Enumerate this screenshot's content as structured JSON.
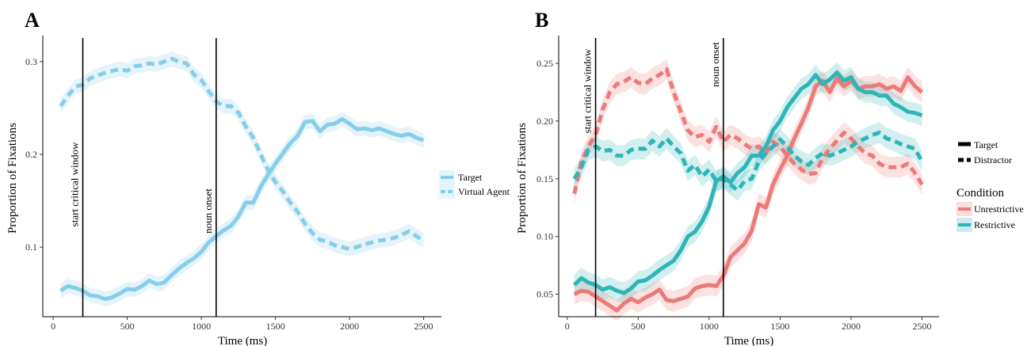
{
  "chart_data": [
    {
      "panel": "A",
      "type": "line",
      "xlabel": "Time (ms)",
      "ylabel": "Proportion of Fixations",
      "xlim": [
        -70,
        2620
      ],
      "ylim": [
        0.025,
        0.328
      ],
      "x_ticks": [
        0,
        500,
        1000,
        1500,
        2000,
        2500
      ],
      "y_ticks": [
        0.1,
        0.2,
        0.3
      ],
      "y_tick_labels": [
        "0.1",
        "0.2",
        "0.3"
      ],
      "vlines": [
        {
          "x": 200,
          "label": "start critical window"
        },
        {
          "x": 1100,
          "label": "noun onset"
        }
      ],
      "legend": {
        "position": "right",
        "entries": [
          "Target",
          "Virtual Agent"
        ]
      },
      "ribbon_halfwidth": 0.008,
      "series": [
        {
          "name": "Target",
          "color": "#87CEEB",
          "dash": "solid",
          "x": [
            50,
            100,
            150,
            200,
            250,
            300,
            350,
            400,
            450,
            500,
            550,
            600,
            650,
            700,
            750,
            800,
            850,
            900,
            950,
            1000,
            1050,
            1100,
            1150,
            1200,
            1250,
            1300,
            1350,
            1400,
            1450,
            1500,
            1550,
            1600,
            1650,
            1700,
            1750,
            1800,
            1850,
            1900,
            1950,
            2000,
            2050,
            2100,
            2150,
            2200,
            2250,
            2300,
            2350,
            2400,
            2450,
            2500
          ],
          "values": [
            0.053,
            0.058,
            0.056,
            0.053,
            0.048,
            0.047,
            0.044,
            0.046,
            0.05,
            0.055,
            0.054,
            0.058,
            0.064,
            0.06,
            0.062,
            0.07,
            0.077,
            0.083,
            0.088,
            0.095,
            0.105,
            0.112,
            0.118,
            0.123,
            0.133,
            0.148,
            0.148,
            0.165,
            0.178,
            0.19,
            0.201,
            0.212,
            0.22,
            0.235,
            0.236,
            0.225,
            0.232,
            0.233,
            0.238,
            0.233,
            0.227,
            0.228,
            0.226,
            0.228,
            0.225,
            0.222,
            0.22,
            0.222,
            0.218,
            0.215
          ]
        },
        {
          "name": "Virtual Agent",
          "color": "#87CEEB",
          "dash": "dashed",
          "x": [
            50,
            100,
            150,
            200,
            250,
            300,
            350,
            400,
            450,
            500,
            550,
            600,
            650,
            700,
            750,
            800,
            850,
            900,
            950,
            1000,
            1050,
            1100,
            1150,
            1200,
            1250,
            1300,
            1350,
            1400,
            1450,
            1500,
            1550,
            1600,
            1650,
            1700,
            1750,
            1800,
            1850,
            1900,
            1950,
            2000,
            2050,
            2100,
            2150,
            2200,
            2250,
            2300,
            2350,
            2400,
            2450,
            2500
          ],
          "values": [
            0.252,
            0.263,
            0.273,
            0.275,
            0.282,
            0.285,
            0.288,
            0.29,
            0.292,
            0.29,
            0.295,
            0.296,
            0.298,
            0.297,
            0.3,
            0.303,
            0.3,
            0.298,
            0.286,
            0.28,
            0.268,
            0.257,
            0.252,
            0.252,
            0.245,
            0.23,
            0.218,
            0.2,
            0.183,
            0.17,
            0.16,
            0.148,
            0.138,
            0.125,
            0.115,
            0.108,
            0.106,
            0.102,
            0.1,
            0.098,
            0.1,
            0.103,
            0.105,
            0.107,
            0.108,
            0.11,
            0.113,
            0.117,
            0.112,
            0.107
          ]
        }
      ]
    },
    {
      "panel": "B",
      "type": "line",
      "xlabel": "Time (ms)",
      "ylabel": "Proportion of Fixations",
      "xlim": [
        -60,
        2620
      ],
      "ylim": [
        0.0305,
        0.274
      ],
      "x_ticks": [
        0,
        500,
        1000,
        1500,
        2000,
        2500
      ],
      "y_ticks": [
        0.05,
        0.1,
        0.15,
        0.2,
        0.25
      ],
      "y_tick_labels": [
        "0.05",
        "0.10",
        "0.15",
        "0.20",
        "0.25"
      ],
      "vlines": [
        {
          "x": 200,
          "label": "start critical window"
        },
        {
          "x": 1100,
          "label": "noun onset"
        }
      ],
      "legend_linetype": {
        "position": "right",
        "entries": [
          "Target",
          "Distractor"
        ]
      },
      "legend_condition": {
        "position": "right",
        "title": "Condition",
        "entries": [
          "Unrestrictive",
          "Restrictive"
        ],
        "colors": [
          "#EB7A78",
          "#2FB4B8"
        ]
      },
      "ribbon_halfwidth": 0.009,
      "series": [
        {
          "name": "Unrestrictive Target",
          "color": "#EB7A78",
          "dash": "solid",
          "x": [
            50,
            100,
            150,
            200,
            250,
            300,
            350,
            400,
            450,
            500,
            550,
            600,
            650,
            700,
            750,
            800,
            850,
            900,
            950,
            1000,
            1050,
            1100,
            1150,
            1200,
            1250,
            1300,
            1350,
            1400,
            1450,
            1500,
            1550,
            1600,
            1650,
            1700,
            1750,
            1800,
            1850,
            1900,
            1950,
            2000,
            2050,
            2100,
            2150,
            2200,
            2250,
            2300,
            2350,
            2400,
            2450,
            2500
          ],
          "values": [
            0.05,
            0.053,
            0.052,
            0.048,
            0.044,
            0.04,
            0.036,
            0.042,
            0.046,
            0.043,
            0.047,
            0.05,
            0.054,
            0.045,
            0.044,
            0.046,
            0.048,
            0.055,
            0.057,
            0.058,
            0.057,
            0.066,
            0.082,
            0.088,
            0.094,
            0.105,
            0.128,
            0.125,
            0.145,
            0.158,
            0.17,
            0.185,
            0.198,
            0.212,
            0.23,
            0.235,
            0.225,
            0.237,
            0.23,
            0.235,
            0.228,
            0.23,
            0.23,
            0.232,
            0.228,
            0.23,
            0.226,
            0.238,
            0.23,
            0.225
          ]
        },
        {
          "name": "Unrestrictive Distractor",
          "color": "#EB7A78",
          "dash": "dashed",
          "x": [
            50,
            100,
            150,
            200,
            250,
            300,
            350,
            400,
            450,
            500,
            550,
            600,
            650,
            700,
            750,
            800,
            850,
            900,
            950,
            1000,
            1050,
            1100,
            1150,
            1200,
            1250,
            1300,
            1350,
            1400,
            1450,
            1500,
            1550,
            1600,
            1650,
            1700,
            1750,
            1800,
            1850,
            1900,
            1950,
            2000,
            2050,
            2100,
            2150,
            2200,
            2250,
            2300,
            2350,
            2400,
            2450,
            2500
          ],
          "values": [
            0.137,
            0.165,
            0.178,
            0.188,
            0.21,
            0.225,
            0.232,
            0.234,
            0.238,
            0.233,
            0.232,
            0.237,
            0.24,
            0.245,
            0.225,
            0.208,
            0.192,
            0.186,
            0.188,
            0.182,
            0.195,
            0.182,
            0.188,
            0.185,
            0.18,
            0.176,
            0.178,
            0.172,
            0.182,
            0.178,
            0.17,
            0.163,
            0.158,
            0.154,
            0.155,
            0.168,
            0.176,
            0.183,
            0.19,
            0.185,
            0.178,
            0.172,
            0.17,
            0.163,
            0.16,
            0.16,
            0.16,
            0.163,
            0.155,
            0.145
          ]
        },
        {
          "name": "Restrictive Target",
          "color": "#2FB4B8",
          "dash": "solid",
          "x": [
            50,
            100,
            150,
            200,
            250,
            300,
            350,
            400,
            450,
            500,
            550,
            600,
            650,
            700,
            750,
            800,
            850,
            900,
            950,
            1000,
            1050,
            1100,
            1150,
            1200,
            1250,
            1300,
            1350,
            1400,
            1450,
            1500,
            1550,
            1600,
            1650,
            1700,
            1750,
            1800,
            1850,
            1900,
            1950,
            2000,
            2050,
            2100,
            2150,
            2200,
            2250,
            2300,
            2350,
            2400,
            2450,
            2500
          ],
          "values": [
            0.058,
            0.064,
            0.06,
            0.058,
            0.054,
            0.056,
            0.053,
            0.051,
            0.055,
            0.061,
            0.062,
            0.066,
            0.071,
            0.075,
            0.079,
            0.088,
            0.1,
            0.104,
            0.113,
            0.126,
            0.148,
            0.152,
            0.147,
            0.155,
            0.16,
            0.17,
            0.17,
            0.178,
            0.192,
            0.2,
            0.212,
            0.22,
            0.228,
            0.232,
            0.24,
            0.232,
            0.236,
            0.242,
            0.235,
            0.238,
            0.228,
            0.225,
            0.225,
            0.222,
            0.222,
            0.215,
            0.212,
            0.208,
            0.207,
            0.205
          ]
        },
        {
          "name": "Restrictive Distractor",
          "color": "#2FB4B8",
          "dash": "dashed",
          "x": [
            50,
            100,
            150,
            200,
            250,
            300,
            350,
            400,
            450,
            500,
            550,
            600,
            650,
            700,
            750,
            800,
            850,
            900,
            950,
            1000,
            1050,
            1100,
            1150,
            1200,
            1250,
            1300,
            1350,
            1400,
            1450,
            1500,
            1550,
            1600,
            1650,
            1700,
            1750,
            1800,
            1850,
            1900,
            1950,
            2000,
            2050,
            2100,
            2150,
            2200,
            2250,
            2300,
            2350,
            2400,
            2450,
            2500
          ],
          "values": [
            0.15,
            0.16,
            0.175,
            0.178,
            0.174,
            0.175,
            0.17,
            0.17,
            0.175,
            0.176,
            0.176,
            0.183,
            0.178,
            0.185,
            0.178,
            0.172,
            0.157,
            0.162,
            0.152,
            0.158,
            0.148,
            0.15,
            0.145,
            0.14,
            0.148,
            0.15,
            0.165,
            0.172,
            0.178,
            0.184,
            0.178,
            0.17,
            0.165,
            0.162,
            0.168,
            0.172,
            0.17,
            0.172,
            0.175,
            0.178,
            0.182,
            0.185,
            0.188,
            0.19,
            0.185,
            0.183,
            0.18,
            0.178,
            0.176,
            0.165
          ]
        }
      ]
    }
  ]
}
